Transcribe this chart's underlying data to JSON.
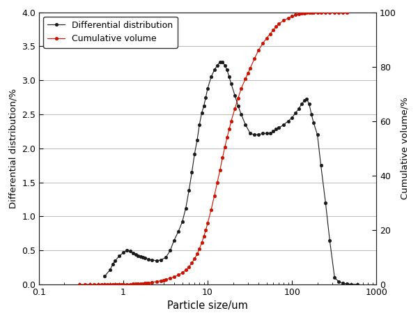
{
  "diff_x": [
    0.6,
    0.7,
    0.75,
    0.8,
    0.9,
    1.0,
    1.1,
    1.2,
    1.3,
    1.4,
    1.5,
    1.6,
    1.7,
    1.8,
    2.0,
    2.2,
    2.5,
    2.8,
    3.2,
    3.6,
    4.0,
    4.5,
    5.0,
    5.5,
    6.0,
    6.5,
    7.0,
    7.5,
    8.0,
    8.5,
    9.0,
    9.5,
    10.0,
    11.0,
    12.0,
    13.0,
    14.0,
    15.0,
    16.0,
    17.0,
    18.0,
    19.0,
    21.0,
    23.0,
    25.0,
    28.0,
    32.0,
    36.0,
    40.0,
    45.0,
    50.0,
    55.0,
    60.0,
    65.0,
    70.0,
    80.0,
    90.0,
    100.0,
    110.0,
    120.0,
    130.0,
    140.0,
    150.0,
    160.0,
    170.0,
    180.0,
    200.0,
    220.0,
    250.0,
    280.0,
    320.0,
    360.0,
    400.0,
    450.0,
    500.0,
    600.0
  ],
  "diff_y": [
    0.12,
    0.22,
    0.3,
    0.35,
    0.42,
    0.47,
    0.5,
    0.49,
    0.46,
    0.44,
    0.42,
    0.41,
    0.4,
    0.39,
    0.37,
    0.36,
    0.35,
    0.36,
    0.4,
    0.5,
    0.65,
    0.78,
    0.92,
    1.12,
    1.38,
    1.65,
    1.92,
    2.12,
    2.35,
    2.52,
    2.62,
    2.75,
    2.88,
    3.05,
    3.15,
    3.22,
    3.27,
    3.27,
    3.22,
    3.15,
    3.05,
    2.95,
    2.78,
    2.62,
    2.5,
    2.35,
    2.22,
    2.2,
    2.2,
    2.22,
    2.22,
    2.22,
    2.25,
    2.28,
    2.3,
    2.35,
    2.4,
    2.45,
    2.52,
    2.58,
    2.65,
    2.7,
    2.72,
    2.65,
    2.5,
    2.38,
    2.2,
    1.75,
    1.2,
    0.65,
    0.1,
    0.04,
    0.02,
    0.01,
    0.005,
    0.0
  ],
  "cum_x": [
    0.3,
    0.35,
    0.4,
    0.45,
    0.5,
    0.55,
    0.6,
    0.65,
    0.7,
    0.75,
    0.8,
    0.85,
    0.9,
    0.95,
    1.0,
    1.1,
    1.2,
    1.3,
    1.4,
    1.5,
    1.6,
    1.7,
    1.8,
    1.9,
    2.0,
    2.2,
    2.5,
    2.8,
    3.0,
    3.2,
    3.6,
    4.0,
    4.5,
    5.0,
    5.5,
    6.0,
    6.5,
    7.0,
    7.5,
    8.0,
    8.5,
    9.0,
    9.5,
    10.0,
    11.0,
    12.0,
    13.0,
    14.0,
    15.0,
    16.0,
    17.0,
    18.0,
    19.0,
    21.0,
    23.0,
    25.0,
    28.0,
    30.0,
    32.0,
    36.0,
    40.0,
    45.0,
    50.0,
    55.0,
    60.0,
    65.0,
    70.0,
    80.0,
    90.0,
    100.0,
    110.0,
    120.0,
    130.0,
    140.0,
    150.0,
    160.0,
    170.0,
    180.0,
    200.0,
    220.0,
    250.0,
    280.0,
    320.0,
    360.0,
    400.0,
    450.0
  ],
  "cum_y": [
    0.0,
    0.0,
    0.0,
    0.0,
    0.0,
    0.0,
    0.01,
    0.01,
    0.02,
    0.02,
    0.03,
    0.04,
    0.05,
    0.06,
    0.07,
    0.1,
    0.13,
    0.17,
    0.21,
    0.26,
    0.31,
    0.38,
    0.45,
    0.54,
    0.63,
    0.82,
    1.1,
    1.4,
    1.6,
    1.85,
    2.3,
    2.8,
    3.5,
    4.3,
    5.3,
    6.5,
    7.9,
    9.5,
    11.2,
    13.2,
    15.3,
    17.6,
    20.0,
    22.5,
    27.5,
    32.5,
    37.5,
    42.0,
    46.5,
    50.5,
    54.0,
    57.0,
    60.0,
    64.5,
    68.5,
    72.0,
    75.5,
    77.5,
    79.5,
    83.0,
    86.0,
    88.5,
    90.5,
    92.0,
    93.5,
    94.8,
    95.8,
    97.0,
    97.8,
    98.5,
    99.0,
    99.3,
    99.5,
    99.7,
    99.8,
    99.85,
    99.9,
    99.93,
    99.96,
    99.98,
    99.99,
    100.0,
    100.0,
    100.0,
    100.0,
    100.0
  ],
  "diff_color": "#1a1a1a",
  "cum_color": "#cc1100",
  "ylabel_left": "Differential distribution/%",
  "ylabel_right": "Cumulative volume/%",
  "xlabel": "Particle size/um",
  "legend_diff": "Differential distribution",
  "legend_cum": "Cumulative volume",
  "ylim_left": [
    0.0,
    4.0
  ],
  "ylim_right": [
    0,
    100
  ],
  "xlim": [
    0.1,
    1000
  ],
  "yticks_left": [
    0.0,
    0.5,
    1.0,
    1.5,
    2.0,
    2.5,
    3.0,
    3.5,
    4.0
  ],
  "yticks_right": [
    0,
    20,
    40,
    60,
    80,
    100
  ],
  "bg_color": "#ffffff",
  "plot_bg": "#ffffff"
}
